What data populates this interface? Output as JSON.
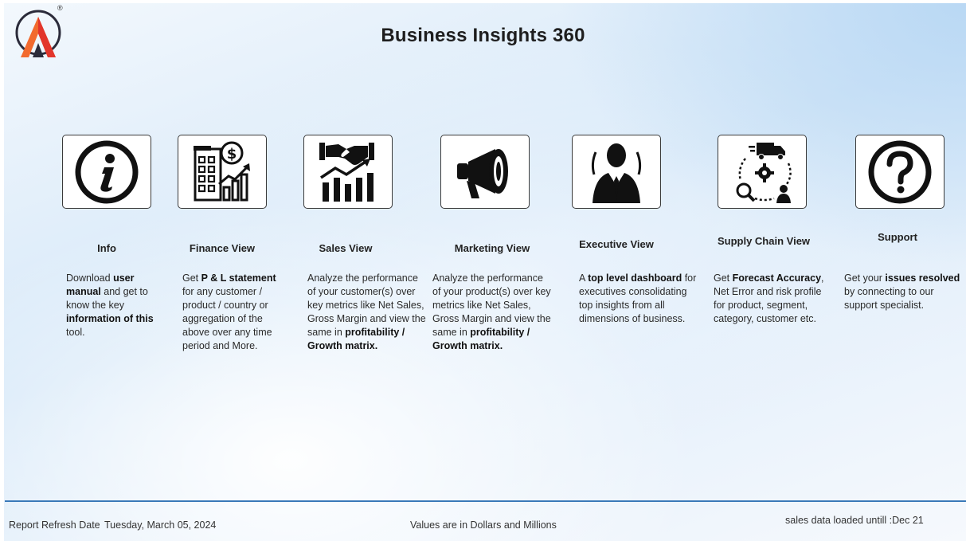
{
  "app": {
    "title": "Business Insights 360"
  },
  "logo": {
    "icon": "atliq-logo-icon",
    "mark": "®",
    "colors": {
      "orange": "#f26a2e",
      "red": "#e2352b",
      "dark": "#2b2b3a"
    }
  },
  "nav_cards": [
    {
      "id": "info",
      "icon": "info-icon",
      "label": "Info",
      "desc": [
        {
          "t": "Download ",
          "b": false
        },
        {
          "t": "user manual",
          "b": true
        },
        {
          "t": " and get to know the key ",
          "b": false
        },
        {
          "t": "information of this",
          "b": true
        },
        {
          "t": " tool.",
          "b": false
        }
      ]
    },
    {
      "id": "finance",
      "icon": "finance-building-chart-icon",
      "label": "Finance View",
      "desc": [
        {
          "t": "Get  ",
          "b": false
        },
        {
          "t": "P & L statement",
          "b": true
        },
        {
          "t": " for any customer / product / country or aggregation of the above over any time period and More.",
          "b": false
        }
      ]
    },
    {
      "id": "sales",
      "icon": "handshake-growth-icon",
      "label": "Sales View",
      "desc": [
        {
          "t": "Analyze the performance of your customer(s) over key metrics like Net Sales, Gross Margin and view the same in ",
          "b": false
        },
        {
          "t": "profitability / Growth matrix.",
          "b": true
        }
      ]
    },
    {
      "id": "marketing",
      "icon": "megaphone-icon",
      "label": "Marketing View",
      "desc": [
        {
          "t": "Analyze the performance of your product(s) over key metrics like Net Sales, Gross Margin and view the same in ",
          "b": false
        },
        {
          "t": "profitability / Growth matrix.",
          "b": true
        }
      ]
    },
    {
      "id": "executive",
      "icon": "executive-person-icon",
      "label": "Executive View",
      "desc": [
        {
          "t": "A ",
          "b": false
        },
        {
          "t": "top level dashboard",
          "b": true
        },
        {
          "t": " for executives consolidating top insights from all dimensions of business.",
          "b": false
        }
      ]
    },
    {
      "id": "supply",
      "icon": "supply-chain-cycle-icon",
      "label": "Supply Chain View",
      "desc": [
        {
          "t": "Get ",
          "b": false
        },
        {
          "t": "Forecast Accuracy",
          "b": true
        },
        {
          "t": ", Net Error and risk profile for product, segment, category, customer etc.",
          "b": false
        }
      ]
    },
    {
      "id": "support",
      "icon": "question-mark-icon",
      "label": "Support",
      "desc": [
        {
          "t": "Get your ",
          "b": false
        },
        {
          "t": "issues resolved",
          "b": true
        },
        {
          "t": " by connecting to our support specialist.",
          "b": false
        }
      ]
    }
  ],
  "footer": {
    "refresh_label": "Report Refresh Date",
    "refresh_date": "Tuesday, March 05, 2024",
    "units_note": "Values are in Dollars and Millions",
    "loaded_note": "sales data loaded untill :Dec 21"
  },
  "colors": {
    "accent": "#3a79b8",
    "icon": "#111111",
    "card_border": "#3a3a3a"
  }
}
